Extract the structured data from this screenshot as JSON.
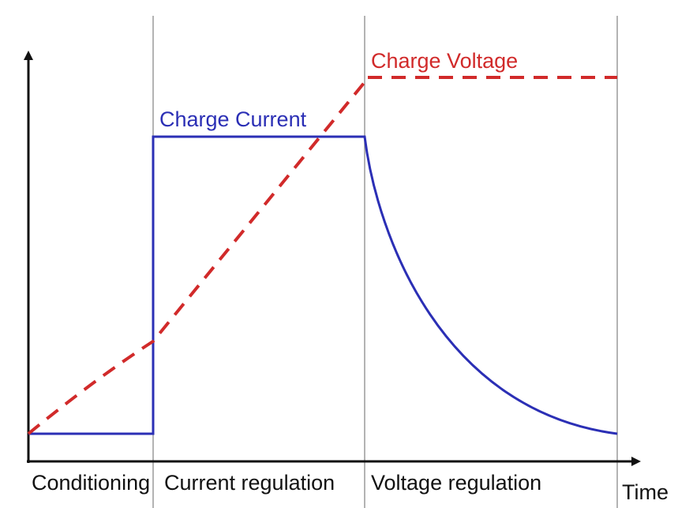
{
  "diagram": {
    "series": {
      "current": {
        "label": "Charge Current",
        "color": "#2b2fb5"
      },
      "voltage": {
        "label": "Charge Voltage",
        "color": "#d12a2a"
      }
    },
    "phases": [
      {
        "label": "Conditioning"
      },
      {
        "label": "Current regulation"
      },
      {
        "label": "Voltage regulation"
      }
    ],
    "axis": {
      "x_label": "Time"
    },
    "colors": {
      "axis": "#111111",
      "divider": "#9a9a9a"
    }
  }
}
